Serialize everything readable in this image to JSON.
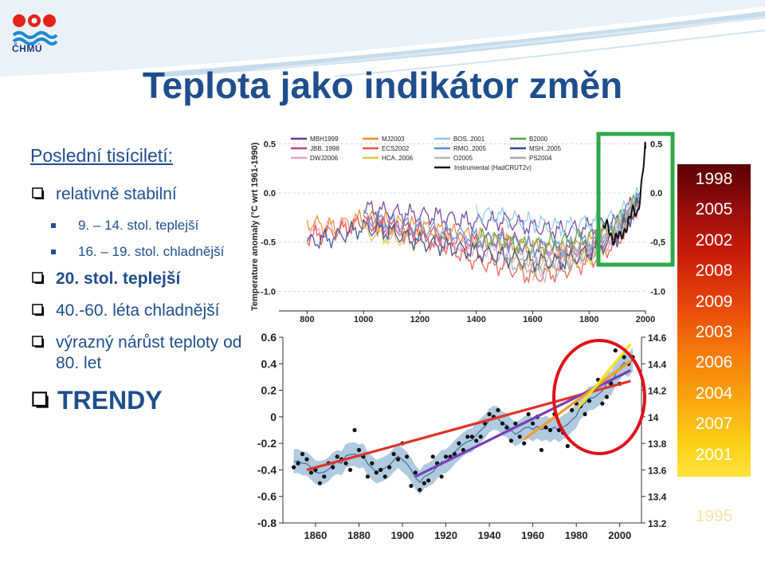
{
  "logo": {
    "text": "ČHMÚ"
  },
  "title": "Teplota jako indikátor změn",
  "left_panel": {
    "section_title": "Poslední tisíciletí:",
    "items": [
      {
        "text": "relativně stabilní"
      },
      {
        "sub": [
          "9. – 14. stol. teplejší",
          "16. – 19. stol. chladnější"
        ]
      },
      {
        "text": "20. stol. teplejší"
      },
      {
        "text": "40.-60. léta chladnější"
      },
      {
        "text": "výrazný nárůst teploty od 80. let"
      },
      {
        "text": "TRENDY"
      }
    ]
  },
  "years": [
    "1998",
    "2005",
    "2002",
    "2008",
    "2009",
    "2003",
    "2006",
    "2004",
    "2007",
    "2001"
  ],
  "year_faded": "1995",
  "top_chart_text": {
    "ylabel": "Temperature anomaly  (°C wrt 1961-1990)",
    "yticks": [
      "0.5",
      "0.0",
      "-0.5",
      "-1.0"
    ],
    "yticks_right": [
      "0.5",
      "0.0",
      "-0,5",
      "-1.0"
    ],
    "xticks": [
      "800",
      "1000",
      "1200",
      "1400",
      "1600",
      "1800",
      "2000"
    ],
    "legend": [
      "MBH1999",
      "MJ2003",
      "BOS..2001",
      "B2000",
      "JBB..1998",
      "ECS2002",
      "RMO..2005",
      "MSH..2005",
      "DWJ2006",
      "HCA..2006",
      "O2005",
      "PS2004",
      "Instrumental (HadCRUT2v)"
    ]
  },
  "bottom_chart_text": {
    "yticks_left": [
      "0.6",
      "0.4",
      "0.2",
      "0",
      "-0.2",
      "-0.4",
      "-0.6",
      "-0.8"
    ],
    "yticks_right": [
      "14.6",
      "14.4",
      "14.2",
      "14",
      "13.8",
      "13.6",
      "13.4",
      "13.2"
    ],
    "xticks": [
      "1860",
      "1880",
      "1900",
      "1920",
      "1940",
      "1960",
      "1980",
      "2000"
    ]
  },
  "chart_data": [
    {
      "type": "line",
      "title": "",
      "ylabel": "Temperature anomaly  (°C wrt 1961-1990)",
      "xlim": [
        700,
        2000
      ],
      "ylim": [
        -1.2,
        0.6
      ],
      "series": [
        {
          "name": "MBH1999",
          "color": "#6b3a8f",
          "x": [
            1000,
            1100,
            1200,
            1300,
            1400,
            1500,
            1600,
            1700,
            1800,
            1900,
            1980
          ],
          "y": [
            -0.15,
            -0.2,
            -0.22,
            -0.25,
            -0.3,
            -0.28,
            -0.35,
            -0.38,
            -0.35,
            -0.3,
            0.0
          ]
        },
        {
          "name": "JBB..1998",
          "color": "#b5477f",
          "x": [
            1000,
            1100,
            1200,
            1300,
            1400,
            1500,
            1600,
            1700,
            1800,
            1900,
            1980
          ],
          "y": [
            -0.3,
            -0.35,
            -0.4,
            -0.45,
            -0.5,
            -0.45,
            -0.55,
            -0.6,
            -0.55,
            -0.4,
            -0.1
          ]
        },
        {
          "name": "DWJ2006",
          "color": "#e6a3c8",
          "x": [
            800,
            900,
            1000,
            1100,
            1200,
            1300,
            1400,
            1500,
            1600,
            1700,
            1800,
            1900,
            1980
          ],
          "y": [
            -0.4,
            -0.35,
            -0.3,
            -0.4,
            -0.45,
            -0.5,
            -0.55,
            -0.6,
            -0.7,
            -0.65,
            -0.6,
            -0.45,
            -0.05
          ]
        },
        {
          "name": "MJ2003",
          "color": "#f08a2e",
          "x": [
            800,
            900,
            1000,
            1100,
            1200,
            1300,
            1400,
            1500,
            1600,
            1700,
            1800,
            1900,
            1980
          ],
          "y": [
            -0.3,
            -0.35,
            -0.25,
            -0.3,
            -0.35,
            -0.4,
            -0.45,
            -0.5,
            -0.55,
            -0.6,
            -0.5,
            -0.35,
            -0.05
          ]
        },
        {
          "name": "ECS2002",
          "color": "#e8524a",
          "x": [
            800,
            900,
            1000,
            1100,
            1200,
            1300,
            1400,
            1500,
            1600,
            1700,
            1800,
            1900,
            1980
          ],
          "y": [
            -0.45,
            -0.4,
            -0.3,
            -0.35,
            -0.45,
            -0.55,
            -0.7,
            -0.75,
            -0.85,
            -0.8,
            -0.7,
            -0.5,
            -0.1
          ]
        },
        {
          "name": "HCA..2006",
          "color": "#e8c23a",
          "x": [
            1000,
            1100,
            1200,
            1300,
            1400,
            1500,
            1600,
            1700,
            1800,
            1900,
            1980
          ],
          "y": [
            -0.4,
            -0.45,
            -0.5,
            -0.55,
            -0.6,
            -0.65,
            -0.75,
            -0.7,
            -0.65,
            -0.45,
            -0.1
          ]
        },
        {
          "name": "BOS..2001",
          "color": "#8fc8ec",
          "x": [
            1400,
            1500,
            1600,
            1700,
            1800,
            1900,
            1980
          ],
          "y": [
            -0.2,
            -0.25,
            -0.3,
            -0.35,
            -0.3,
            -0.25,
            0.0
          ]
        },
        {
          "name": "RMO..2005",
          "color": "#5a8fd0",
          "x": [
            1000,
            1100,
            1200,
            1300,
            1400,
            1500,
            1600,
            1700,
            1800,
            1900,
            1980
          ],
          "y": [
            -0.25,
            -0.3,
            -0.35,
            -0.4,
            -0.45,
            -0.5,
            -0.55,
            -0.55,
            -0.5,
            -0.35,
            -0.05
          ]
        },
        {
          "name": "O2005",
          "color": "#b8b8b8",
          "x": [
            1600,
            1700,
            1800,
            1900,
            1980
          ],
          "y": [
            -0.85,
            -0.75,
            -0.6,
            -0.4,
            -0.1
          ]
        },
        {
          "name": "B2000",
          "color": "#5aa546",
          "x": [
            1400,
            1500,
            1600,
            1700,
            1800,
            1900,
            1980
          ],
          "y": [
            -0.45,
            -0.5,
            -0.55,
            -0.5,
            -0.45,
            -0.3,
            -0.05
          ]
        },
        {
          "name": "MSH..2005",
          "color": "#2e4a9a",
          "x": [
            800,
            900,
            1000,
            1100,
            1200,
            1300,
            1400,
            1500,
            1600,
            1700,
            1800,
            1900,
            1980
          ],
          "y": [
            -0.5,
            -0.45,
            -0.35,
            -0.4,
            -0.5,
            -0.55,
            -0.6,
            -0.65,
            -0.7,
            -0.7,
            -0.6,
            -0.45,
            -0.1
          ]
        },
        {
          "name": "PS2004",
          "color": "#a8a8a8",
          "x": [
            1500,
            1600,
            1700,
            1800,
            1900,
            1980
          ],
          "y": [
            -0.7,
            -0.75,
            -0.7,
            -0.6,
            -0.4,
            -0.05
          ]
        },
        {
          "name": "Instrumental (HadCRUT2v)",
          "color": "#111111",
          "x": [
            1850,
            1870,
            1890,
            1910,
            1930,
            1950,
            1970,
            1990,
            2000
          ],
          "y": [
            -0.4,
            -0.35,
            -0.45,
            -0.5,
            -0.3,
            -0.25,
            -0.2,
            0.2,
            0.45
          ]
        }
      ]
    },
    {
      "type": "scatter",
      "title": "",
      "xlim": [
        1845,
        2010
      ],
      "ylim": [
        -0.8,
        0.6
      ],
      "x": [
        1850,
        1852,
        1854,
        1856,
        1858,
        1860,
        1862,
        1864,
        1866,
        1868,
        1870,
        1872,
        1874,
        1876,
        1878,
        1880,
        1882,
        1884,
        1886,
        1888,
        1890,
        1892,
        1894,
        1896,
        1898,
        1900,
        1902,
        1904,
        1906,
        1908,
        1910,
        1912,
        1914,
        1916,
        1918,
        1920,
        1922,
        1924,
        1926,
        1928,
        1930,
        1932,
        1934,
        1936,
        1938,
        1940,
        1942,
        1944,
        1946,
        1948,
        1950,
        1952,
        1954,
        1956,
        1958,
        1960,
        1962,
        1964,
        1966,
        1968,
        1970,
        1972,
        1974,
        1976,
        1978,
        1980,
        1982,
        1984,
        1986,
        1988,
        1990,
        1992,
        1994,
        1996,
        1998,
        2000,
        2002,
        2004,
        2006
      ],
      "y": [
        -0.38,
        -0.35,
        -0.28,
        -0.32,
        -0.42,
        -0.4,
        -0.5,
        -0.45,
        -0.35,
        -0.38,
        -0.3,
        -0.32,
        -0.35,
        -0.4,
        -0.1,
        -0.25,
        -0.3,
        -0.45,
        -0.35,
        -0.42,
        -0.4,
        -0.45,
        -0.38,
        -0.28,
        -0.32,
        -0.2,
        -0.3,
        -0.52,
        -0.42,
        -0.55,
        -0.5,
        -0.48,
        -0.3,
        -0.35,
        -0.45,
        -0.3,
        -0.3,
        -0.28,
        -0.2,
        -0.25,
        -0.15,
        -0.15,
        -0.18,
        -0.15,
        -0.05,
        0.02,
        0.0,
        0.05,
        -0.05,
        -0.08,
        -0.18,
        -0.05,
        -0.15,
        -0.2,
        0.02,
        -0.05,
        0.0,
        -0.25,
        -0.08,
        -0.1,
        0.02,
        -0.1,
        -0.12,
        -0.22,
        0.05,
        0.1,
        0.08,
        0.02,
        0.12,
        0.2,
        0.28,
        0.1,
        0.15,
        0.25,
        0.5,
        0.25,
        0.45,
        0.4,
        0.45
      ],
      "trend_lines": [
        {
          "period": [
            1856,
            2005
          ],
          "color": "#e0332a",
          "y": [
            -0.4,
            0.27
          ]
        },
        {
          "period": [
            1906,
            2005
          ],
          "color": "#7a3db8",
          "y": [
            -0.45,
            0.35
          ]
        },
        {
          "period": [
            1956,
            2005
          ],
          "color": "#f39c2a",
          "y": [
            -0.17,
            0.42
          ]
        },
        {
          "period": [
            1981,
            2005
          ],
          "color": "#f5e21f",
          "y": [
            0.07,
            0.55
          ]
        }
      ]
    }
  ]
}
